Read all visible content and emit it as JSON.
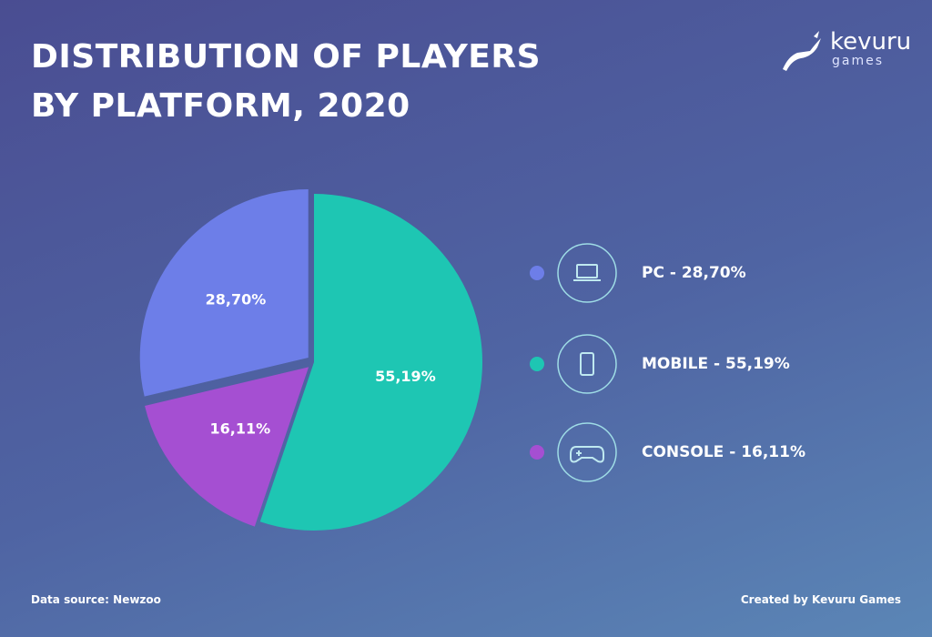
{
  "header": {
    "title": "DISTRIBUTION OF PLAYERS BY PLATFORM, 2020",
    "logo_brand": "kevuru",
    "logo_sub": "games"
  },
  "chart_data": {
    "type": "pie",
    "categories": [
      "PC - 28,70%",
      "MOBILE - 55,19%",
      "CONSOLE - 16,11%"
    ],
    "values": [
      28.7,
      55.19,
      16.11
    ],
    "value_labels": [
      "28,70%",
      "55,19%",
      "16,11%"
    ],
    "colors": [
      "#6d7ee8",
      "#1ec6b3",
      "#a54fd2"
    ]
  },
  "footer": {
    "source": "Data source: Newzoo",
    "credit": "Created by Kevuru Games"
  }
}
